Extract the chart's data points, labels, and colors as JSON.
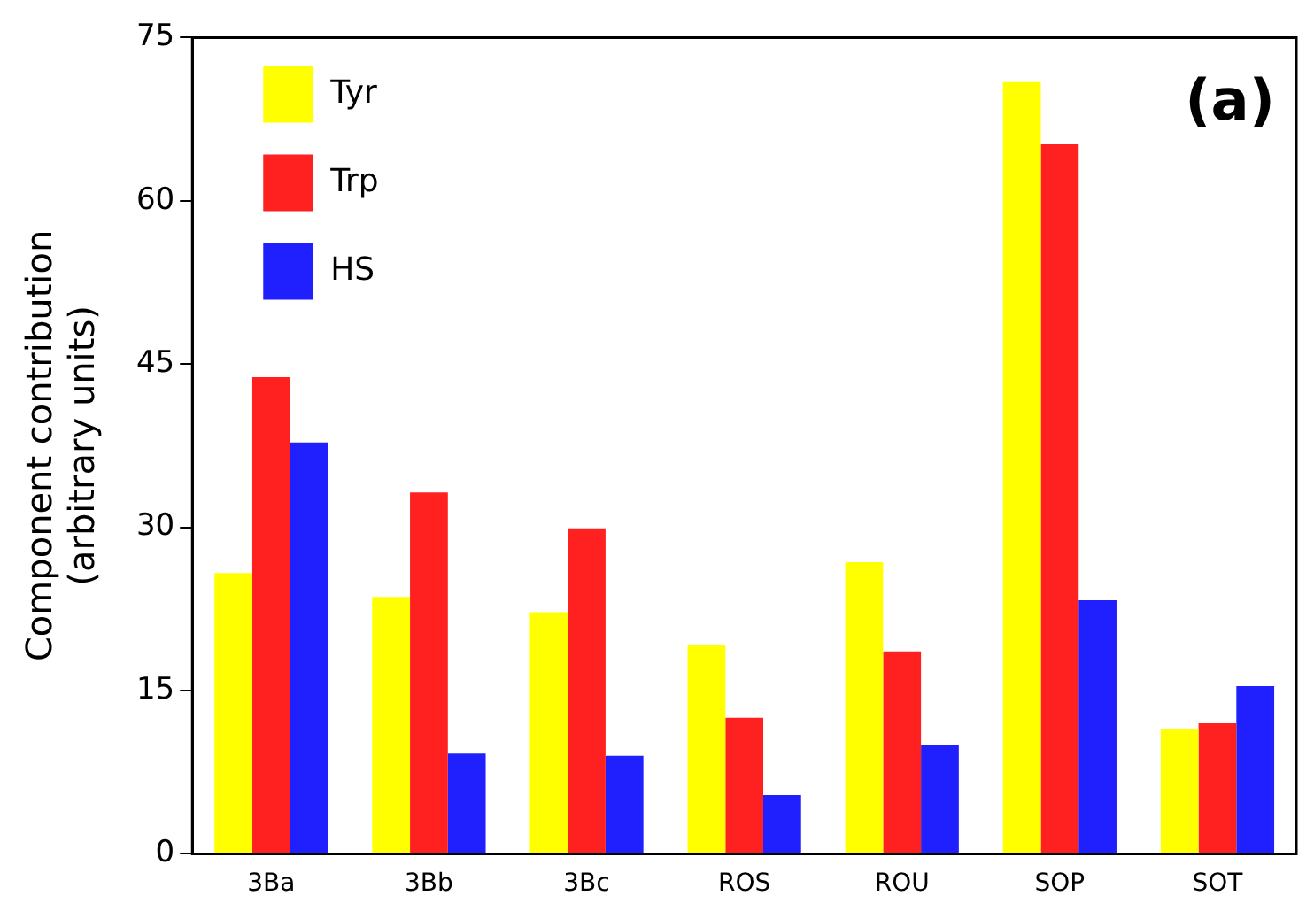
{
  "chart_data": {
    "type": "bar",
    "ylabel": "Component contribution\n(arbitrary units)",
    "categories": [
      "3Ba",
      "3Bb",
      "3Bc",
      "ROS",
      "ROU",
      "SOP",
      "SOT"
    ],
    "series": [
      {
        "name": "Tyr",
        "color": "#ffff00",
        "values": [
          25.8,
          23.6,
          22.2,
          19.2,
          26.8,
          70.9,
          11.5
        ]
      },
      {
        "name": "Trp",
        "color": "#ff2020",
        "values": [
          43.8,
          33.2,
          29.9,
          12.5,
          18.6,
          65.2,
          12.0
        ]
      },
      {
        "name": "HS",
        "color": "#2020ff",
        "values": [
          37.8,
          9.2,
          9.0,
          5.4,
          10.0,
          23.3,
          15.4
        ]
      }
    ],
    "ylim": [
      0,
      75
    ],
    "yticks": [
      0,
      15,
      30,
      45,
      60,
      75
    ],
    "grid": false,
    "legend": "top left",
    "annotations": [
      "(a)"
    ]
  }
}
